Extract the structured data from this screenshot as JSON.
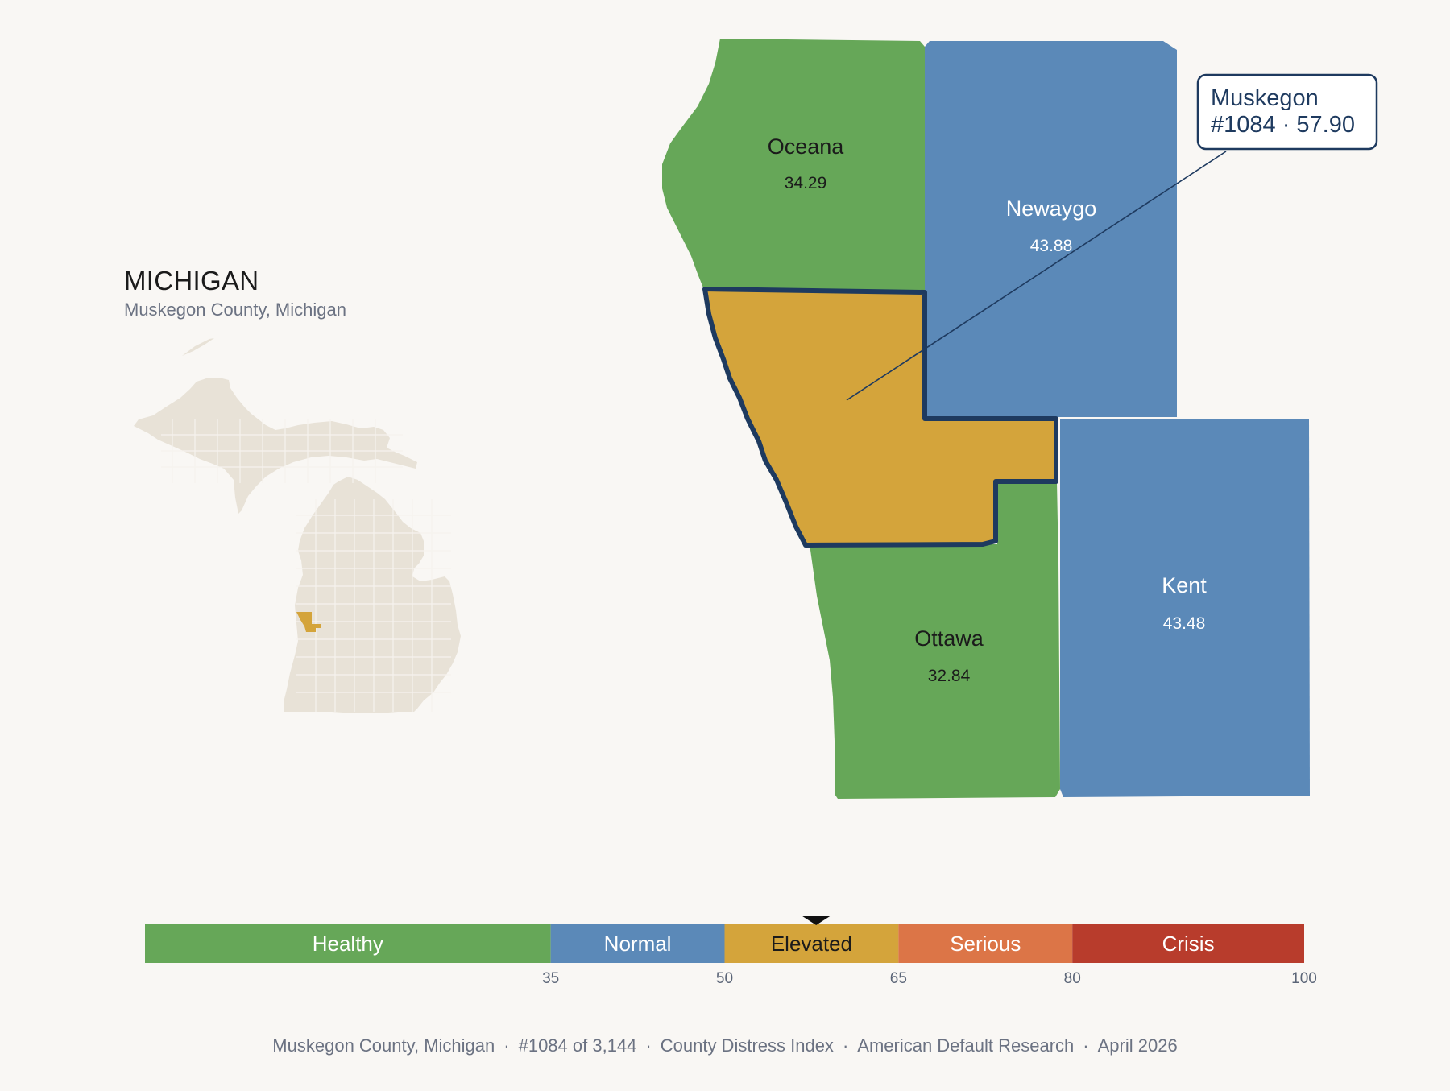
{
  "state": {
    "title": "MICHIGAN",
    "subtitle": "Muskegon County, Michigan",
    "inset_fill": "#e8e2d7",
    "highlight_fill": "#d4a43b"
  },
  "counties": [
    {
      "id": "oceana",
      "name": "Oceana",
      "score": "34.29",
      "category": "Healthy"
    },
    {
      "id": "newaygo",
      "name": "Newaygo",
      "score": "43.88",
      "category": "Normal"
    },
    {
      "id": "muskegon",
      "name": "Muskegon",
      "score": "57.90",
      "category": "Elevated",
      "focus": true
    },
    {
      "id": "ottawa",
      "name": "Ottawa",
      "score": "32.84",
      "category": "Healthy"
    },
    {
      "id": "kent",
      "name": "Kent",
      "score": "43.48",
      "category": "Normal"
    }
  ],
  "callout": {
    "line1": "Muskegon",
    "line2": "#1084 · 57.90"
  },
  "legend": {
    "categories": [
      {
        "label": "Healthy",
        "from": 0,
        "to": 35,
        "color": "#66a758"
      },
      {
        "label": "Normal",
        "from": 35,
        "to": 50,
        "color": "#5b89b8"
      },
      {
        "label": "Elevated",
        "from": 50,
        "to": 65,
        "color": "#d4a43b"
      },
      {
        "label": "Serious",
        "from": 65,
        "to": 80,
        "color": "#dc7547"
      },
      {
        "label": "Crisis",
        "from": 80,
        "to": 100,
        "color": "#b83c2c"
      }
    ],
    "ticks": [
      "35",
      "50",
      "65",
      "80",
      "100"
    ],
    "marker_value": 57.9
  },
  "footer": {
    "county": "Muskegon County, Michigan",
    "rank": "#1084 of 3,144",
    "index": "County Distress Index",
    "org": "American Default Research",
    "date": "April 2026"
  }
}
